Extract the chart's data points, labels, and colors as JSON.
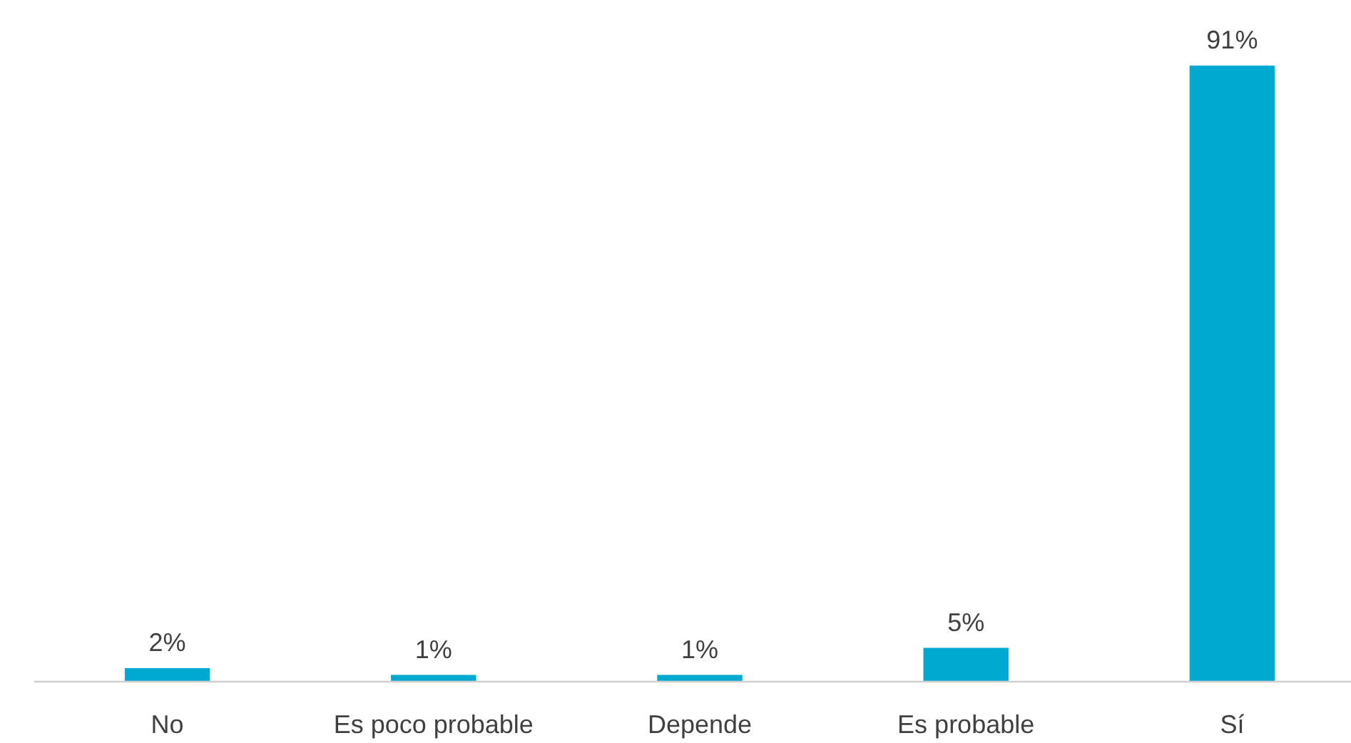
{
  "chart_data": {
    "type": "bar",
    "categories": [
      "No",
      "Es poco probable",
      "Depende",
      "Es probable",
      "Sí"
    ],
    "values": [
      2,
      1,
      1,
      5,
      91
    ],
    "value_labels": [
      "2%",
      "1%",
      "1%",
      "5%",
      "91%"
    ],
    "color": "#00a9d0"
  }
}
